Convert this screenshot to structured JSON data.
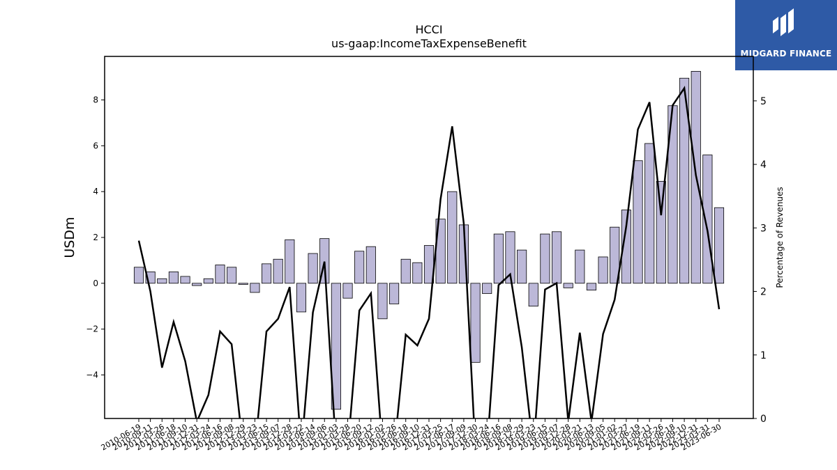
{
  "logo": {
    "name": "MIDGARD FINANCE"
  },
  "chart_data": {
    "type": "bar+line",
    "title": "HCCI",
    "subtitle": "us-gaap:IncomeTaxExpenseBenefit",
    "ylabel_left": "USDm",
    "ylabel_right": "Percentage of Revenues",
    "ylim_left": [
      -5.9,
      9.9
    ],
    "ylim_right": [
      0,
      5.7
    ],
    "yticks_left": [
      -4,
      -2,
      0,
      2,
      4,
      6,
      8
    ],
    "yticks_right": [
      0,
      1,
      2,
      3,
      4,
      5
    ],
    "bar_color": "#bcb8d8",
    "line_color": "#000000",
    "categories": [
      "2010-06-19",
      "2010-09-11",
      "2011-03-26",
      "2011-06-18",
      "2011-09-10",
      "2011-12-31",
      "2012-03-24",
      "2012-06-16",
      "2012-09-08",
      "2012-12-29",
      "2013-03-23",
      "2013-06-15",
      "2013-09-07",
      "2013-12-28",
      "2014-03-22",
      "2014-06-14",
      "2014-09-06",
      "2015-01-03",
      "2015-03-28",
      "2015-06-20",
      "2015-09-12",
      "2016-01-02",
      "2016-03-26",
      "2016-06-18",
      "2016-09-10",
      "2016-12-31",
      "2017-03-25",
      "2017-06-17",
      "2017-09-09",
      "2017-12-30",
      "2018-03-24",
      "2018-06-16",
      "2018-09-08",
      "2018-12-29",
      "2019-03-23",
      "2019-06-15",
      "2019-09-07",
      "2019-12-28",
      "2020-03-21",
      "2020-06-13",
      "2020-09-05",
      "2021-01-02",
      "2021-03-27",
      "2021-06-19",
      "2021-09-11",
      "2022-03-26",
      "2022-06-18",
      "2022-09-10",
      "2022-12-31",
      "2023-03-31",
      "2023-06-30"
    ],
    "tick_labels": [
      "2010-06-19",
      "2010-09-11",
      "2011-03-26",
      "2011-06-18",
      "2011-09-10",
      "2011-12-31",
      "2012-03-24",
      "2012-06-16",
      "2012-09-08",
      "2012-12-29",
      "2013-03-23",
      "2013-06-15",
      "2013-09-07",
      "2013-12-28",
      "2014-03-22",
      "2014-06-14",
      "2014-09-06",
      "2015-01-03",
      "2015-03-28",
      "2015-06-20",
      "2015-09-12",
      "2016-01-02",
      "2016-03-26",
      "2016-06-18",
      "2016-09-10",
      "2016-12-31",
      "2017-03-25",
      "2017-06-17",
      "2017-09-09",
      "2017-12-30",
      "2018-03-24",
      "2018-06-16",
      "2018-09-08",
      "2018-12-29",
      "2019-03-23",
      "2019-06-15",
      "2019-09-07",
      "2019-12-28",
      "2020-03-21",
      "2020-06-13",
      "2020-09-05",
      "2021-01-02",
      "2021-03-27",
      "2021-06-19",
      "2021-09-11",
      "2022-03-26",
      "2022-06-18",
      "2022-09-10",
      "2022-12-31",
      "2023-03-31",
      "2023-06-30"
    ],
    "series": [
      {
        "type": "bar",
        "axis": "left",
        "values": [
          0.7,
          0.5,
          0.2,
          0.5,
          0.3,
          -0.1,
          0.2,
          0.8,
          0.7,
          -0.05,
          -0.4,
          0.85,
          1.05,
          1.9,
          -1.25,
          1.3,
          1.95,
          -5.5,
          -0.65,
          1.4,
          1.6,
          -1.55,
          -0.9,
          1.05,
          0.9,
          1.65,
          2.8,
          4.0,
          2.55,
          -3.45,
          -0.45,
          2.15,
          2.25,
          1.45,
          -1.0,
          2.15,
          2.25,
          -0.2,
          1.45,
          -0.3,
          1.15,
          2.45,
          3.2,
          5.35,
          6.1,
          4.45,
          7.75,
          8.95,
          9.25,
          5.6,
          3.3
        ]
      },
      {
        "type": "line",
        "axis": "right",
        "values": [
          2.8,
          2.0,
          0.8,
          1.52,
          0.9,
          -0.05,
          0.37,
          1.37,
          1.17,
          -0.5,
          -0.5,
          1.37,
          1.57,
          2.07,
          -0.5,
          1.67,
          2.47,
          -0.5,
          -0.5,
          1.7,
          1.97,
          -0.5,
          -0.5,
          1.32,
          1.15,
          1.57,
          3.45,
          4.6,
          3.07,
          -0.5,
          -0.5,
          2.1,
          2.27,
          1.12,
          -0.5,
          2.03,
          2.13,
          -0.05,
          1.35,
          -0.05,
          1.33,
          1.87,
          3.03,
          4.55,
          4.98,
          3.2,
          4.93,
          5.2,
          3.83,
          2.95,
          1.72
        ]
      }
    ]
  }
}
